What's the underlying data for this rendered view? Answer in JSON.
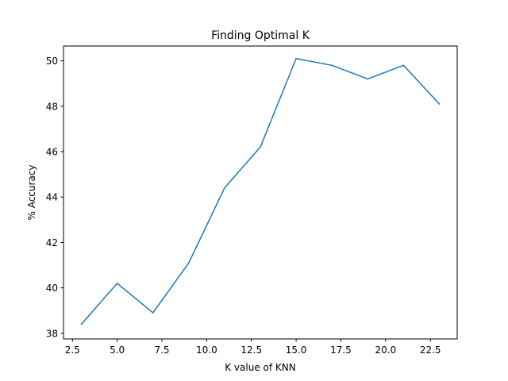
{
  "chart_data": {
    "type": "line",
    "title": "Finding Optimal K",
    "xlabel": "K value of KNN",
    "ylabel": "% Accuracy",
    "xlim": [
      2.0,
      24.0
    ],
    "ylim": [
      37.75,
      50.65
    ],
    "xticks": [
      2.5,
      5.0,
      7.5,
      10.0,
      12.5,
      15.0,
      17.5,
      20.0,
      22.5
    ],
    "xtick_labels": [
      "2.5",
      "5.0",
      "7.5",
      "10.0",
      "12.5",
      "15.0",
      "17.5",
      "20.0",
      "22.5"
    ],
    "yticks": [
      38,
      40,
      42,
      44,
      46,
      48,
      50
    ],
    "ytick_labels": [
      "38",
      "40",
      "42",
      "44",
      "46",
      "48",
      "50"
    ],
    "grid": false,
    "series": [
      {
        "color": "#1f77b4",
        "x": [
          3,
          5,
          7,
          9,
          11,
          13,
          15,
          17,
          19,
          21,
          23
        ],
        "y": [
          38.4,
          40.2,
          38.9,
          41.1,
          44.4,
          46.2,
          50.1,
          49.8,
          49.2,
          49.8,
          48.1
        ]
      }
    ]
  }
}
